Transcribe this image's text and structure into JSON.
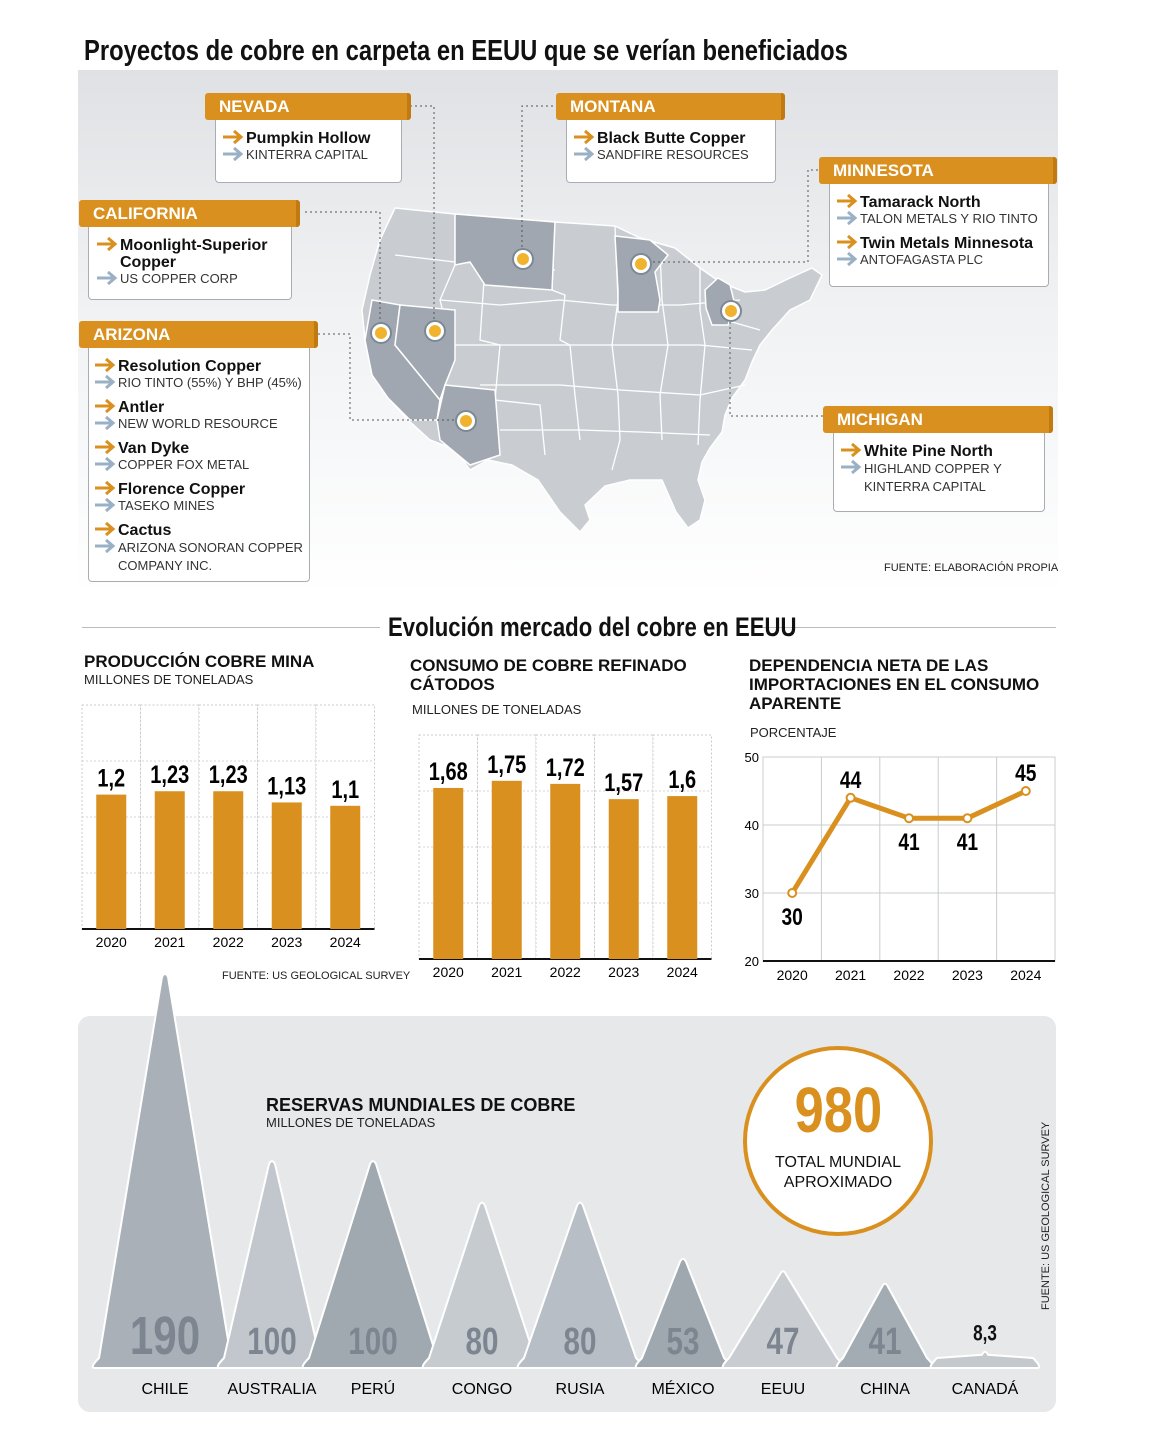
{
  "header": {
    "title": "Proyectos de cobre en carpeta en EEUU que se verían beneficiados",
    "map_source": "FUENTE: ELABORACIÓN PROPIA"
  },
  "colors": {
    "accent": "#d9901f",
    "map_state": "#c9cdd2",
    "map_highlight": "#9aa2ab",
    "reserve_tri": "#aab1b9"
  },
  "states": {
    "nevada": {
      "name": "NEVADA",
      "projects": [
        {
          "name": "Pumpkin Hollow",
          "company": "KINTERRA CAPITAL"
        }
      ]
    },
    "montana": {
      "name": "MONTANA",
      "projects": [
        {
          "name": "Black Butte Copper",
          "company": "SANDFIRE RESOURCES"
        }
      ]
    },
    "minnesota": {
      "name": "MINNESOTA",
      "projects": [
        {
          "name": "Tamarack North",
          "company": "TALON METALS Y RIO TINTO"
        },
        {
          "name": "Twin Metals Minnesota",
          "company": "ANTOFAGASTA PLC"
        }
      ]
    },
    "california": {
      "name": "CALIFORNIA",
      "projects": [
        {
          "name": "Moonlight-Superior Copper",
          "company": "US COPPER CORP"
        }
      ]
    },
    "arizona": {
      "name": "ARIZONA",
      "projects": [
        {
          "name": "Resolution Copper",
          "company": "RIO TINTO (55%) Y BHP (45%)"
        },
        {
          "name": "Antler",
          "company": "NEW WORLD RESOURCE"
        },
        {
          "name": "Van Dyke",
          "company": "COPPER FOX METAL"
        },
        {
          "name": "Florence Copper",
          "company": "TASEKO MINES"
        },
        {
          "name": "Cactus",
          "company": "ARIZONA SONORAN COPPER COMPANY INC."
        }
      ]
    },
    "michigan": {
      "name": "MICHIGAN",
      "projects": [
        {
          "name": "White Pine North",
          "company": "HIGHLAND COPPER Y KINTERRA CAPITAL"
        }
      ]
    }
  },
  "section2": {
    "title": "Evolución mercado del cobre en EEUU"
  },
  "chart_data": [
    {
      "type": "bar",
      "title": "PRODUCCIÓN COBRE MINA",
      "subtitle": "MILLONES DE TONELADAS",
      "categories": [
        "2020",
        "2021",
        "2022",
        "2023",
        "2024"
      ],
      "values": [
        1.2,
        1.23,
        1.23,
        1.13,
        1.1
      ],
      "value_labels": [
        "1,2",
        "1,23",
        "1,23",
        "1,13",
        "1,1"
      ],
      "ylim": [
        0,
        2
      ],
      "source": "FUENTE: US GEOLOGICAL SURVEY"
    },
    {
      "type": "bar",
      "title": "CONSUMO DE COBRE REFINADO CÁTODOS",
      "subtitle": "MILLONES DE TONELADAS",
      "categories": [
        "2020",
        "2021",
        "2022",
        "2023",
        "2024"
      ],
      "values": [
        1.68,
        1.75,
        1.72,
        1.57,
        1.6
      ],
      "value_labels": [
        "1,68",
        "1,75",
        "1,72",
        "1,57",
        "1,6"
      ],
      "ylim": [
        0,
        2.2
      ]
    },
    {
      "type": "line",
      "title": "DEPENDENCIA NETA DE LAS IMPORTACIONES EN EL CONSUMO APARENTE",
      "subtitle": "PORCENTAJE",
      "x": [
        "2020",
        "2021",
        "2022",
        "2023",
        "2024"
      ],
      "values": [
        30,
        44,
        41,
        41,
        45
      ],
      "value_labels": [
        "30",
        "44",
        "41",
        "41",
        "45"
      ],
      "ylim": [
        20,
        50
      ],
      "yticks": [
        "20",
        "30",
        "40",
        "50"
      ],
      "grid": true
    },
    {
      "type": "area",
      "title": "RESERVAS MUNDIALES DE COBRE",
      "subtitle": "MILLONES DE TONELADAS",
      "categories": [
        "CHILE",
        "AUSTRALIA",
        "PERÚ",
        "CONGO",
        "RUSIA",
        "MÉXICO",
        "EEUU",
        "CHINA",
        "CANADÁ"
      ],
      "values": [
        190,
        100,
        100,
        80,
        80,
        53,
        47,
        41,
        8.3
      ],
      "value_labels": [
        "190",
        "100",
        "100",
        "80",
        "80",
        "53",
        "47",
        "41",
        "8,3"
      ],
      "total": {
        "value": "980",
        "label_line1": "TOTAL MUNDIAL",
        "label_line2": "APROXIMADO"
      },
      "source": "FUENTE: US GEOLOGICAL SURVEY"
    }
  ]
}
